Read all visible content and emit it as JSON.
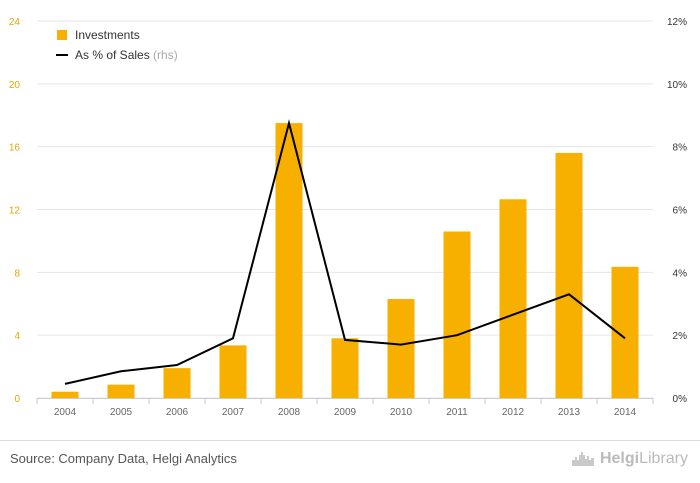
{
  "chart_data": {
    "type": "bar",
    "categories": [
      "2004",
      "2005",
      "2006",
      "2007",
      "2008",
      "2009",
      "2010",
      "2011",
      "2012",
      "2013",
      "2014"
    ],
    "series": [
      {
        "name": "Investments",
        "type": "bar",
        "axis": "left",
        "values": [
          0.4,
          0.85,
          1.9,
          3.35,
          17.5,
          3.8,
          6.3,
          10.6,
          12.65,
          15.6,
          8.35
        ]
      },
      {
        "name": "As % of Sales",
        "type": "line",
        "axis": "right",
        "values": [
          0.45,
          0.85,
          1.05,
          1.9,
          8.75,
          1.85,
          1.7,
          2.0,
          2.65,
          3.3,
          1.9
        ]
      }
    ],
    "ylim_left": [
      0,
      24
    ],
    "yticks_left": [
      "0",
      "4",
      "8",
      "12",
      "16",
      "20",
      "24"
    ],
    "ylim_right": [
      0,
      12
    ],
    "yticks_right": [
      "0%",
      "2%",
      "4%",
      "6%",
      "8%",
      "10%",
      "12%"
    ],
    "legend": {
      "position": "top-left",
      "items": [
        {
          "label": "Investments",
          "suffix": ""
        },
        {
          "label": "As % of Sales",
          "suffix": "(rhs)"
        }
      ]
    },
    "grid": true,
    "colors": {
      "bar": "#F7B000",
      "line": "#000000",
      "left_tick": "#E8A600",
      "right_tick": "#333333",
      "grid": "#e6e6e6"
    }
  },
  "footer": {
    "source": "Source: Company Data, Helgi Analytics",
    "brand_bold": "Helgi",
    "brand_light": "Library",
    "brand_icon": "city-skyline-icon"
  }
}
